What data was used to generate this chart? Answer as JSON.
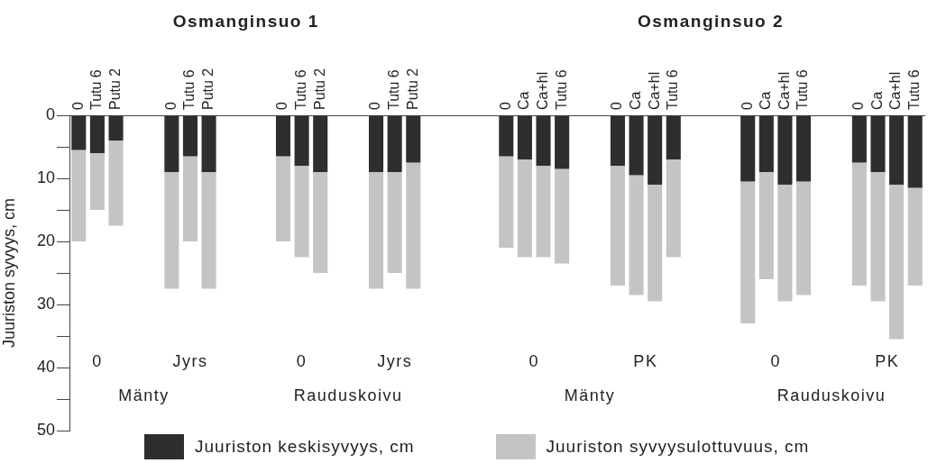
{
  "chart_data": {
    "type": "bar",
    "stacked": true,
    "ylabel": "Juuriston syvyys, cm",
    "ylim": [
      50,
      0
    ],
    "yticks": [
      0,
      {
        "value": 5,
        "label": null
      },
      10,
      {
        "value": 15,
        "label": null
      },
      20,
      {
        "value": 25,
        "label": null
      },
      30,
      {
        "value": 35,
        "label": null
      },
      40,
      {
        "value": 45,
        "label": null
      },
      50
    ],
    "categories": [
      "0",
      "Tutu 6",
      "Putu 2",
      null,
      null,
      "0",
      "Tutu 6",
      "Putu 2",
      null,
      null,
      null,
      "0",
      "Tutu 6",
      "Putu 2",
      null,
      null,
      "0",
      "Tutu 6",
      "Putu 2",
      null,
      null,
      null,
      null,
      "0",
      "Ca",
      "Ca+hl",
      "Tutu 6",
      null,
      null,
      "0",
      "Ca",
      "Ca+hl",
      "Tutu 6",
      null,
      null,
      null,
      "0",
      "Ca",
      "Ca+hl",
      "Tutu 6",
      null,
      null,
      "0",
      "Ca",
      "Ca+hl",
      "Tutu 6"
    ],
    "series": [
      {
        "name": "Juuriston keskisyvyys, cm",
        "color": "#2e2e2e",
        "values": [
          5.5,
          6,
          4,
          null,
          null,
          9,
          6.5,
          9,
          null,
          null,
          null,
          6.5,
          8,
          9,
          null,
          null,
          9,
          9,
          7.5,
          null,
          null,
          null,
          null,
          6.5,
          7,
          8,
          8.5,
          null,
          null,
          8,
          9.5,
          11,
          7,
          null,
          null,
          null,
          10.5,
          9,
          11,
          10.5,
          null,
          null,
          7.5,
          9,
          11,
          11.5
        ]
      },
      {
        "name": "Juuriston syvyysulottuvuus, cm",
        "color": "#c4c4c4",
        "values": [
          14.5,
          9,
          13.5,
          null,
          null,
          18.5,
          13.5,
          18.5,
          null,
          null,
          null,
          13.5,
          14.5,
          16,
          null,
          null,
          18.5,
          16,
          20,
          null,
          null,
          null,
          null,
          14.5,
          15.5,
          14.5,
          15,
          null,
          null,
          19,
          19,
          18.5,
          15.5,
          null,
          null,
          null,
          22.5,
          17,
          18.5,
          18,
          null,
          null,
          19.5,
          20.5,
          24.5,
          15.5
        ]
      }
    ],
    "annotations": [
      "Osmanginsuo 1",
      "Osmanginsuo 2",
      "0",
      "Jyrs",
      "0",
      "Jyrs",
      "0",
      "PK",
      "0",
      "PK",
      "Mänty",
      "Rauduskoivu",
      "Mänty",
      "Rauduskoivu"
    ],
    "legend": "bottom"
  }
}
